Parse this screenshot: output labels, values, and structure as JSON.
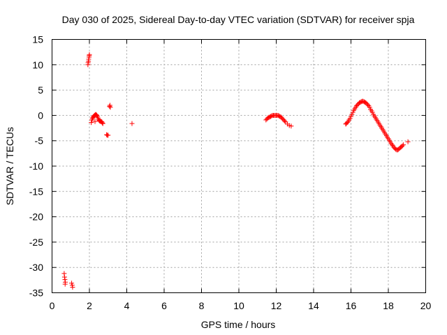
{
  "chart_data": {
    "type": "scatter",
    "title": "Day 030 of 2025, Sidereal Day-to-day VTEC variation (SDTVAR) for receiver spja",
    "xlabel": "GPS time / hours",
    "ylabel": "SDTVAR / TECUs",
    "xlim": [
      0,
      20
    ],
    "ylim": [
      -35,
      15
    ],
    "xticks": [
      0,
      2,
      4,
      6,
      8,
      10,
      12,
      14,
      16,
      18,
      20
    ],
    "yticks": [
      15,
      10,
      5,
      0,
      -5,
      -10,
      -15,
      -20,
      -25,
      -30,
      -35
    ],
    "xtick_labels": [
      "0",
      "2",
      "4",
      "6",
      "8",
      "10",
      "12",
      "14",
      "16",
      "18",
      "20"
    ],
    "ytick_labels": [
      "15",
      "10",
      "5",
      "0",
      "-5",
      "-10",
      "-15",
      "-20",
      "-25",
      "-30",
      "-35"
    ],
    "grid": true,
    "marker": "+",
    "series": [
      {
        "name": "SDTVAR",
        "color": "#ff0000",
        "points": [
          [
            0.65,
            -31.2
          ],
          [
            0.67,
            -31.9
          ],
          [
            0.69,
            -32.4
          ],
          [
            0.71,
            -32.9
          ],
          [
            0.7,
            -33.3
          ],
          [
            1.05,
            -33.1
          ],
          [
            1.08,
            -33.5
          ],
          [
            1.1,
            -33.9
          ],
          [
            1.92,
            10.0
          ],
          [
            1.93,
            10.4
          ],
          [
            1.95,
            10.7
          ],
          [
            1.96,
            11.1
          ],
          [
            1.98,
            11.5
          ],
          [
            1.99,
            11.8
          ],
          [
            2.0,
            12.0
          ],
          [
            2.1,
            -1.4
          ],
          [
            2.13,
            -0.9
          ],
          [
            2.16,
            -0.6
          ],
          [
            2.19,
            -0.4
          ],
          [
            2.22,
            -0.2
          ],
          [
            2.25,
            -0.1
          ],
          [
            2.28,
            0.0
          ],
          [
            2.31,
            0.1
          ],
          [
            2.34,
            0.2
          ],
          [
            2.37,
            0.1
          ],
          [
            2.4,
            0.0
          ],
          [
            2.43,
            -0.2
          ],
          [
            2.46,
            -0.5
          ],
          [
            2.49,
            -0.8
          ],
          [
            2.52,
            -1.0
          ],
          [
            2.55,
            -1.1
          ],
          [
            2.58,
            -1.1
          ],
          [
            2.61,
            -1.2
          ],
          [
            2.64,
            -1.2
          ],
          [
            2.67,
            -1.3
          ],
          [
            2.7,
            -1.5
          ],
          [
            2.72,
            -1.6
          ],
          [
            2.3,
            -1.2
          ],
          [
            2.92,
            -3.8
          ],
          [
            2.96,
            -3.9
          ],
          [
            3.0,
            -3.9
          ],
          [
            3.08,
            1.8
          ],
          [
            3.1,
            2.0
          ],
          [
            3.12,
            1.6
          ],
          [
            4.28,
            -1.6
          ],
          [
            11.45,
            -0.9
          ],
          [
            11.5,
            -0.7
          ],
          [
            11.55,
            -0.5
          ],
          [
            11.6,
            -0.4
          ],
          [
            11.65,
            -0.3
          ],
          [
            11.7,
            -0.2
          ],
          [
            11.75,
            -0.1
          ],
          [
            11.8,
            0.0
          ],
          [
            11.85,
            0.0
          ],
          [
            11.9,
            0.0
          ],
          [
            11.95,
            0.0
          ],
          [
            12.0,
            0.0
          ],
          [
            12.05,
            0.0
          ],
          [
            12.1,
            0.0
          ],
          [
            12.15,
            -0.1
          ],
          [
            12.2,
            -0.2
          ],
          [
            12.25,
            -0.3
          ],
          [
            12.3,
            -0.5
          ],
          [
            12.35,
            -0.7
          ],
          [
            12.4,
            -0.9
          ],
          [
            12.45,
            -1.1
          ],
          [
            12.5,
            -1.3
          ],
          [
            12.6,
            -1.7
          ],
          [
            12.7,
            -2.0
          ],
          [
            12.8,
            -2.1
          ],
          [
            15.72,
            -1.7
          ],
          [
            15.75,
            -1.6
          ],
          [
            15.8,
            -1.4
          ],
          [
            15.85,
            -1.2
          ],
          [
            15.9,
            -0.9
          ],
          [
            15.95,
            -0.6
          ],
          [
            16.0,
            -0.2
          ],
          [
            16.05,
            0.2
          ],
          [
            16.1,
            0.6
          ],
          [
            16.15,
            1.0
          ],
          [
            16.2,
            1.3
          ],
          [
            16.25,
            1.6
          ],
          [
            16.3,
            1.9
          ],
          [
            16.35,
            2.1
          ],
          [
            16.4,
            2.3
          ],
          [
            16.45,
            2.5
          ],
          [
            16.5,
            2.6
          ],
          [
            16.55,
            2.7
          ],
          [
            16.6,
            2.8
          ],
          [
            16.65,
            2.8
          ],
          [
            16.7,
            2.7
          ],
          [
            16.75,
            2.6
          ],
          [
            16.8,
            2.5
          ],
          [
            16.85,
            2.3
          ],
          [
            16.9,
            2.1
          ],
          [
            16.95,
            1.9
          ],
          [
            17.0,
            1.6
          ],
          [
            17.05,
            1.2
          ],
          [
            17.1,
            0.9
          ],
          [
            17.15,
            0.6
          ],
          [
            17.2,
            0.2
          ],
          [
            17.25,
            -0.1
          ],
          [
            17.3,
            -0.4
          ],
          [
            17.35,
            -0.7
          ],
          [
            17.4,
            -1.0
          ],
          [
            17.45,
            -1.3
          ],
          [
            17.5,
            -1.6
          ],
          [
            17.55,
            -1.9
          ],
          [
            17.6,
            -2.2
          ],
          [
            17.65,
            -2.5
          ],
          [
            17.7,
            -2.8
          ],
          [
            17.75,
            -3.1
          ],
          [
            17.8,
            -3.4
          ],
          [
            17.85,
            -3.7
          ],
          [
            17.9,
            -4.0
          ],
          [
            17.95,
            -4.3
          ],
          [
            18.0,
            -4.6
          ],
          [
            18.05,
            -4.9
          ],
          [
            18.1,
            -5.2
          ],
          [
            18.15,
            -5.5
          ],
          [
            18.2,
            -5.8
          ],
          [
            18.25,
            -6.0
          ],
          [
            18.3,
            -6.3
          ],
          [
            18.35,
            -6.5
          ],
          [
            18.4,
            -6.7
          ],
          [
            18.45,
            -6.8
          ],
          [
            18.5,
            -6.8
          ],
          [
            18.55,
            -6.7
          ],
          [
            18.6,
            -6.5
          ],
          [
            18.65,
            -6.3
          ],
          [
            18.7,
            -6.2
          ],
          [
            18.75,
            -6.0
          ],
          [
            18.8,
            -5.8
          ],
          [
            19.05,
            -5.2
          ]
        ]
      }
    ]
  }
}
